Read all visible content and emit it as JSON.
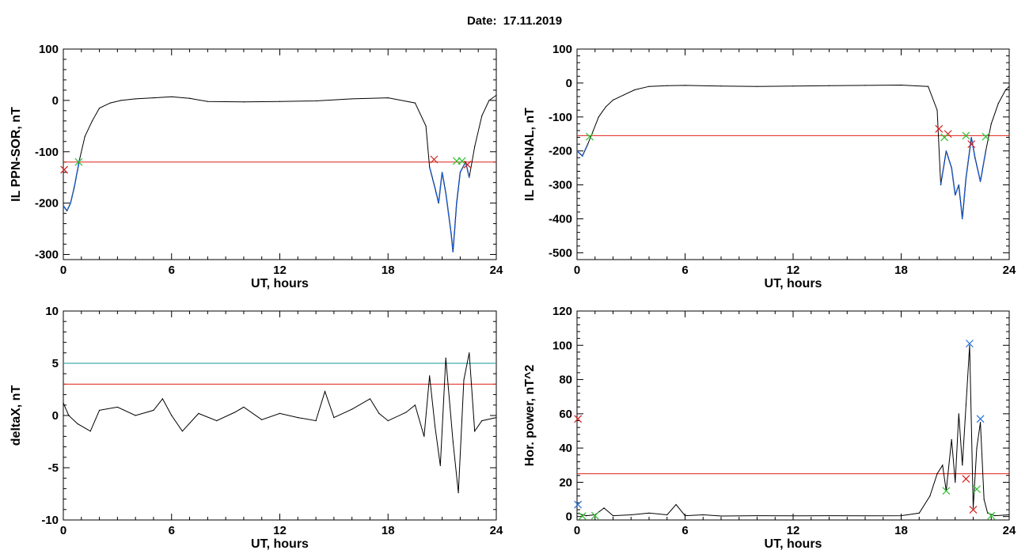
{
  "header": {
    "date_label": "Date:",
    "date_value": "17.11.2019"
  },
  "colors": {
    "trace": "#000000",
    "blue_trace": "#1f5fd0",
    "threshold_red": "#e0201a",
    "threshold_teal": "#169a9a",
    "marker_green": "#2fbf2f",
    "marker_red": "#d41c1c",
    "marker_blue": "#1f6fd8"
  },
  "chart_data": [
    {
      "type": "line",
      "xlabel": "UT, hours",
      "ylabel": "IL PPN-SOR, nT",
      "xlim": [
        0,
        24
      ],
      "ylim": [
        -310,
        100
      ],
      "xticks": [
        0,
        6,
        12,
        18,
        24
      ],
      "yticks": [
        -300,
        -200,
        -100,
        0,
        100
      ],
      "series": [
        {
          "x": [
            0,
            0.2,
            0.4,
            0.6,
            0.9,
            1.2,
            1.6,
            2.0,
            2.6,
            3.2,
            4,
            5,
            6,
            7,
            8,
            10,
            12,
            14,
            16,
            18,
            19.5,
            20.1,
            20.3,
            20.6,
            20.8,
            21.0,
            21.2,
            21.5,
            21.6,
            21.8,
            22.0,
            22.3,
            22.5,
            22.8,
            23.2,
            23.6,
            24
          ],
          "y": [
            -205,
            -215,
            -200,
            -170,
            -115,
            -70,
            -40,
            -15,
            -5,
            0,
            3,
            5,
            7,
            4,
            -2,
            -3,
            -2,
            -1,
            3,
            5,
            -5,
            -50,
            -130,
            -170,
            -200,
            -140,
            -180,
            -260,
            -295,
            -200,
            -140,
            -120,
            -150,
            -90,
            -30,
            0,
            10
          ]
        }
      ],
      "highlight_segments": [
        [
          0,
          0.9
        ],
        [
          20.3,
          22.6
        ]
      ],
      "threshold": -120,
      "markers_red_x": [
        [
          0.05,
          -135
        ],
        [
          20.55,
          -115
        ],
        [
          22.4,
          -125
        ]
      ],
      "markers_green_x": [
        [
          0.85,
          -120
        ],
        [
          21.8,
          -118
        ],
        [
          22.1,
          -118
        ]
      ]
    },
    {
      "type": "line",
      "xlabel": "UT, hours",
      "ylabel": "IL PPN-NAL, nT",
      "xlim": [
        0,
        24
      ],
      "ylim": [
        -520,
        100
      ],
      "xticks": [
        0,
        6,
        12,
        18,
        24
      ],
      "yticks": [
        -500,
        -400,
        -300,
        -200,
        -100,
        0,
        100
      ],
      "series": [
        {
          "x": [
            0,
            0.3,
            0.6,
            0.9,
            1.2,
            1.6,
            2.0,
            2.6,
            3.2,
            4,
            5,
            6,
            8,
            10,
            12,
            14,
            16,
            18,
            19.5,
            20.0,
            20.2,
            20.5,
            20.8,
            21.0,
            21.2,
            21.4,
            21.6,
            21.9,
            22.1,
            22.4,
            22.7,
            23.0,
            23.4,
            23.8,
            24
          ],
          "y": [
            -200,
            -215,
            -180,
            -140,
            -100,
            -70,
            -50,
            -35,
            -20,
            -10,
            -8,
            -7,
            -9,
            -10,
            -9,
            -8,
            -7,
            -6,
            -10,
            -80,
            -300,
            -200,
            -250,
            -330,
            -300,
            -400,
            -280,
            -160,
            -220,
            -290,
            -200,
            -120,
            -60,
            -20,
            -10
          ]
        }
      ],
      "highlight_segments": [
        [
          0,
          0.8
        ],
        [
          20.1,
          22.8
        ]
      ],
      "threshold": -155,
      "markers_red_x": [
        [
          20.1,
          -135
        ],
        [
          20.6,
          -150
        ],
        [
          21.9,
          -180
        ]
      ],
      "markers_green_x": [
        [
          0.7,
          -158
        ],
        [
          20.4,
          -160
        ],
        [
          21.6,
          -155
        ],
        [
          22.7,
          -158
        ]
      ]
    },
    {
      "type": "line",
      "xlabel": "UT, hours",
      "ylabel": "deltaX, nT",
      "xlim": [
        0,
        24
      ],
      "ylim": [
        -10,
        10
      ],
      "xticks": [
        0,
        6,
        12,
        18,
        24
      ],
      "yticks": [
        -10,
        -5,
        0,
        5,
        10
      ],
      "series": [
        {
          "x": [
            0,
            0.3,
            0.8,
            1.5,
            2,
            3,
            4,
            5,
            5.5,
            6,
            6.6,
            7.5,
            8.5,
            9.5,
            10,
            11,
            12,
            13,
            14,
            14.5,
            15,
            16,
            17,
            17.5,
            18,
            19,
            19.5,
            20,
            20.3,
            20.6,
            20.9,
            21.2,
            21.6,
            21.9,
            22.2,
            22.5,
            22.8,
            23.2,
            24
          ],
          "y": [
            1.2,
            0,
            -0.8,
            -1.5,
            0.5,
            0.8,
            0,
            0.5,
            1.6,
            0,
            -1.5,
            0.2,
            -0.5,
            0.3,
            0.8,
            -0.4,
            0.2,
            -0.2,
            -0.5,
            2.3,
            -0.2,
            0.6,
            1.6,
            0.2,
            -0.5,
            0.3,
            1,
            -2,
            3.8,
            -1,
            -4.8,
            5.5,
            -2.5,
            -7.4,
            3.4,
            6,
            -1.5,
            -0.5,
            -0.2
          ]
        }
      ],
      "thresholds": [
        {
          "value": 5,
          "color": "teal"
        },
        {
          "value": 3,
          "color": "red"
        }
      ]
    },
    {
      "type": "line",
      "xlabel": "UT, hours",
      "ylabel": "Hor. power, nT^2",
      "xlim": [
        0,
        24
      ],
      "ylim": [
        -2,
        120
      ],
      "xticks": [
        0,
        6,
        12,
        18,
        24
      ],
      "yticks": [
        0,
        20,
        40,
        60,
        80,
        100,
        120
      ],
      "series": [
        {
          "x": [
            0,
            0.5,
            1,
            1.5,
            2,
            3,
            4,
            5,
            5.5,
            6,
            7,
            8,
            10,
            12,
            14,
            16,
            18,
            19,
            19.6,
            20,
            20.3,
            20.5,
            20.8,
            21,
            21.2,
            21.4,
            21.6,
            21.8,
            22,
            22.2,
            22.4,
            22.6,
            22.8,
            23.2,
            24
          ],
          "y": [
            2,
            0.5,
            1,
            5,
            0.5,
            1,
            2,
            1,
            7,
            0.5,
            1,
            0.3,
            0.5,
            0.4,
            0.5,
            0.4,
            0.5,
            2,
            12,
            25,
            30,
            15,
            45,
            20,
            60,
            30,
            65,
            100,
            5,
            40,
            55,
            10,
            2,
            0.5,
            1
          ]
        }
      ],
      "threshold": 25,
      "markers_red_x": [
        [
          0.05,
          57
        ],
        [
          21.6,
          22
        ],
        [
          22.0,
          4
        ]
      ],
      "markers_green_x": [
        [
          0.3,
          0.3
        ],
        [
          1.0,
          0.5
        ],
        [
          20.5,
          15
        ],
        [
          22.2,
          16
        ],
        [
          23.0,
          0.5
        ]
      ],
      "markers_blue_x": [
        [
          0.05,
          7
        ],
        [
          21.8,
          101
        ],
        [
          22.4,
          57
        ]
      ]
    }
  ]
}
